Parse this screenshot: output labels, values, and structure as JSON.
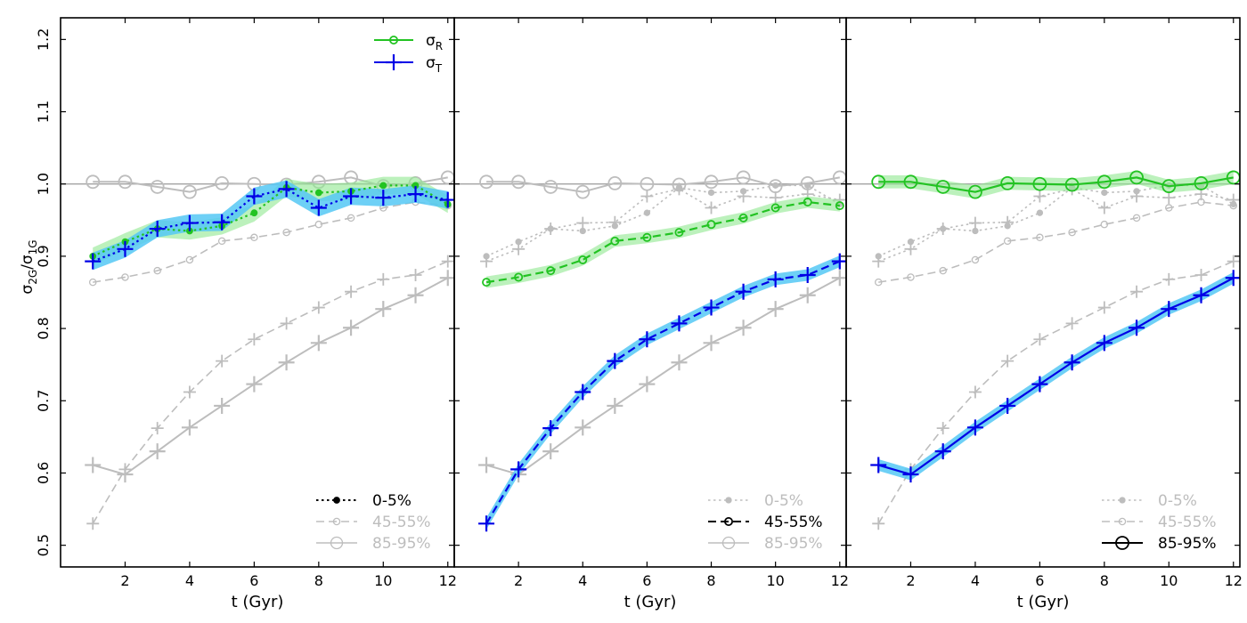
{
  "colors": {
    "green": "#22c322",
    "green_band": "#90e890",
    "blue": "#0000e6",
    "blue_band": "#55c8f5",
    "gray": "#bdbdbd",
    "black": "#000000"
  },
  "figure": {
    "ylabel_main": "σ",
    "ylabel_num_sub": "2G",
    "ylabel_slash": "/σ",
    "ylabel_den_sub": "1G",
    "xlabel": "t (Gyr)",
    "reference_line": 1.0,
    "legend_sigma": [
      {
        "symbol": "σ",
        "sub": "R",
        "color_key": "green"
      },
      {
        "symbol": "σ",
        "sub": "T",
        "color_key": "blue"
      }
    ]
  },
  "chart_data": {
    "type": "line",
    "xlim": [
      0,
      12.2
    ],
    "ylim": [
      0.47,
      1.23
    ],
    "xticks": [
      2,
      4,
      6,
      8,
      10,
      12
    ],
    "yticks": [
      0.5,
      0.6,
      0.7,
      0.8,
      0.9,
      1.0,
      1.1,
      1.2
    ],
    "ytick_labels": [
      "0.5",
      "0.6",
      "0.7",
      "0.8",
      "0.9",
      "1.0",
      "1.1",
      "1.2"
    ],
    "x": [
      1,
      2,
      3,
      4,
      5,
      6,
      7,
      8,
      9,
      10,
      11,
      12
    ],
    "groups": [
      {
        "label": "0-5%",
        "style": "dotted",
        "marker": "dot",
        "sigma_R": [
          0.9,
          0.92,
          0.938,
          0.935,
          0.942,
          0.96,
          0.995,
          0.988,
          0.99,
          0.998,
          0.998,
          0.972
        ],
        "sigma_T": [
          0.893,
          0.91,
          0.938,
          0.946,
          0.947,
          0.983,
          0.993,
          0.967,
          0.983,
          0.981,
          0.986,
          0.978
        ]
      },
      {
        "label": "45-55%",
        "style": "dashed",
        "marker": "smallcircle",
        "sigma_R": [
          0.864,
          0.871,
          0.88,
          0.895,
          0.921,
          0.926,
          0.933,
          0.944,
          0.953,
          0.967,
          0.975,
          0.97
        ],
        "sigma_T": [
          0.53,
          0.605,
          0.662,
          0.712,
          0.755,
          0.785,
          0.807,
          0.829,
          0.851,
          0.868,
          0.874,
          0.893
        ]
      },
      {
        "label": "85-95%",
        "style": "solid",
        "marker": "bigcircle",
        "sigma_R": [
          1.003,
          1.003,
          0.996,
          0.989,
          1.001,
          1.0,
          0.999,
          1.003,
          1.009,
          0.997,
          1.001,
          1.009
        ],
        "sigma_T": [
          0.611,
          0.598,
          0.63,
          0.663,
          0.693,
          0.723,
          0.753,
          0.78,
          0.801,
          0.827,
          0.846,
          0.87
        ]
      }
    ],
    "panels": [
      {
        "highlight": 0,
        "band_R": 0.012,
        "band_T": 0.012
      },
      {
        "highlight": 1,
        "band_R": 0.008,
        "band_T": 0.008
      },
      {
        "highlight": 2,
        "band_R": 0.009,
        "band_T": 0.008
      }
    ]
  }
}
